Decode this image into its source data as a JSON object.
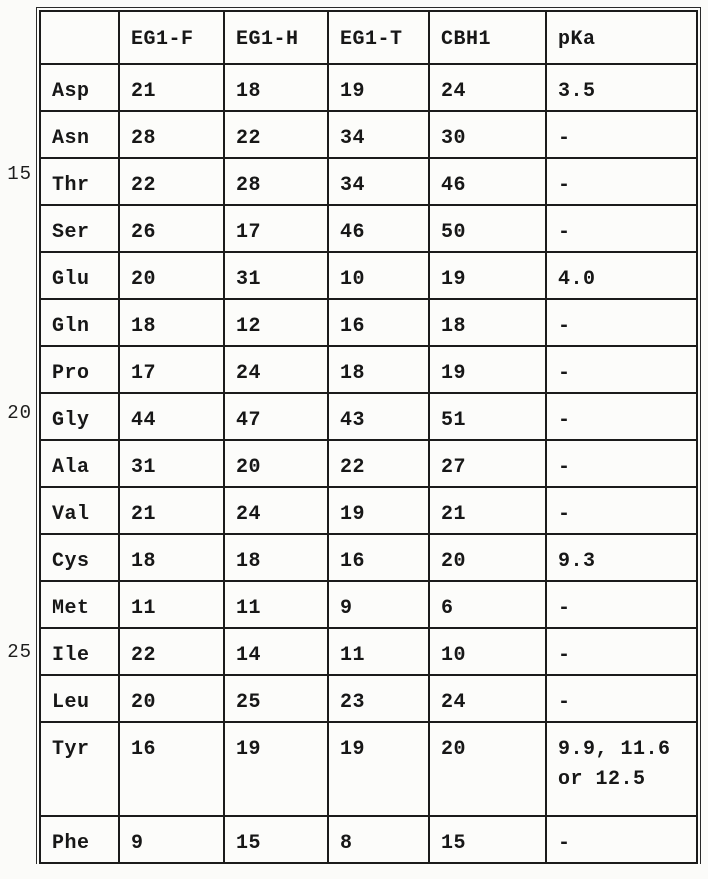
{
  "page": {
    "background_color": "#fbfbf9",
    "text_color": "#171717",
    "grid_color": "#1b1b1b"
  },
  "margin": {
    "line_numbers": [
      {
        "label": "15",
        "aligned_row": "Thr"
      },
      {
        "label": "20",
        "aligned_row": "Gly"
      },
      {
        "label": "25",
        "aligned_row": "Ile"
      }
    ]
  },
  "table": {
    "description": "Amino acid residue counts per enzyme and side-chain pKa",
    "headers": [
      "",
      "EG1-F",
      "EG1-H",
      "EG1-T",
      "CBH1",
      "pKa"
    ],
    "rows": [
      [
        "Asp",
        "21",
        "18",
        "19",
        "24",
        "3.5"
      ],
      [
        "Asn",
        "28",
        "22",
        "34",
        "30",
        "-"
      ],
      [
        "Thr",
        "22",
        "28",
        "34",
        "46",
        "-"
      ],
      [
        "Ser",
        "26",
        "17",
        "46",
        "50",
        "-"
      ],
      [
        "Glu",
        "20",
        "31",
        "10",
        "19",
        "4.0"
      ],
      [
        "Gln",
        "18",
        "12",
        "16",
        "18",
        "-"
      ],
      [
        "Pro",
        "17",
        "24",
        "18",
        "19",
        "-"
      ],
      [
        "Gly",
        "44",
        "47",
        "43",
        "51",
        "-"
      ],
      [
        "Ala",
        "31",
        "20",
        "22",
        "27",
        "-"
      ],
      [
        "Val",
        "21",
        "24",
        "19",
        "21",
        "-"
      ],
      [
        "Cys",
        "18",
        "18",
        "16",
        "20",
        "9.3"
      ],
      [
        "Met",
        "11",
        "11",
        "9",
        "6",
        "-"
      ],
      [
        "Ile",
        "22",
        "14",
        "11",
        "10",
        "-"
      ],
      [
        "Leu",
        "20",
        "25",
        "23",
        "24",
        "-"
      ],
      [
        "Tyr",
        "16",
        "19",
        "19",
        "20",
        "9.9, 11.6\nor 12.5"
      ],
      [
        "Phe",
        "9",
        "15",
        "8",
        "15",
        "-"
      ]
    ]
  }
}
